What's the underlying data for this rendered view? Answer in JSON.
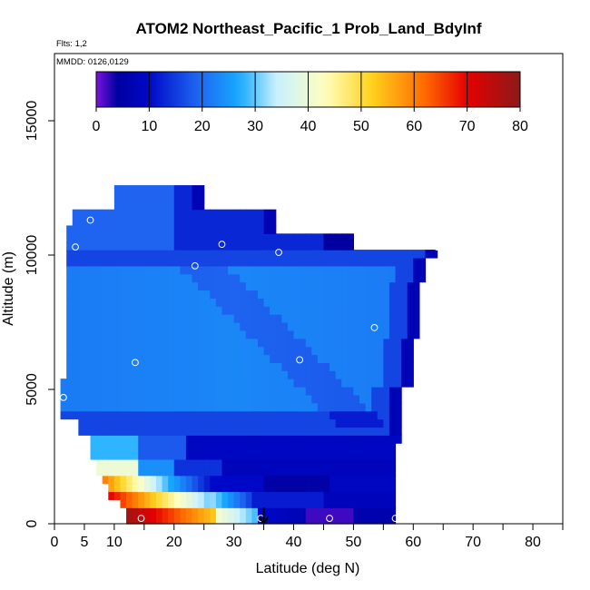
{
  "chart_data": {
    "type": "heatmap",
    "title": "ATOM2 Northeast_Pacific_1 Prob_Land_BdyInf",
    "flights_label": "Flts: 1,2",
    "dates_label": "MMDD: 0126,0129",
    "xlabel": "Latitude (deg N)",
    "ylabel": "Altitude (m)",
    "xlim": [
      0,
      85
    ],
    "ylim": [
      0,
      17500
    ],
    "xticks": [
      0,
      5,
      10,
      20,
      30,
      40,
      50,
      60,
      70,
      80
    ],
    "yticks": [
      0,
      5000,
      10000,
      15000
    ],
    "colorbar": {
      "range": [
        0,
        80
      ],
      "ticks": [
        0,
        10,
        20,
        30,
        40,
        50,
        60,
        70,
        80
      ],
      "colors": [
        "#7b12e0",
        "#0000a0",
        "#0008c8",
        "#1e64f0",
        "#16aaff",
        "#c8f0ff",
        "#ffffc0",
        "#ffd21e",
        "#ff6a00",
        "#e60000",
        "#8b1a1a"
      ]
    },
    "grid": false,
    "arrow_marker_latitude": 35,
    "profile_points": [
      {
        "lat": 14.5,
        "alt": 200
      },
      {
        "lat": 34.5,
        "alt": 200
      },
      {
        "lat": 46,
        "alt": 200
      },
      {
        "lat": 57,
        "alt": 200
      },
      {
        "lat": 1.5,
        "alt": 4700
      },
      {
        "lat": 13.5,
        "alt": 6000
      },
      {
        "lat": 41,
        "alt": 6100
      },
      {
        "lat": 53.5,
        "alt": 7300
      },
      {
        "lat": 23.5,
        "alt": 9600
      },
      {
        "lat": 3.5,
        "alt": 10300
      },
      {
        "lat": 6,
        "alt": 11300
      },
      {
        "lat": 28,
        "alt": 10400
      },
      {
        "lat": 37.5,
        "alt": 10100
      },
      {
        "lat": 64,
        "alt": 10300
      }
    ]
  }
}
